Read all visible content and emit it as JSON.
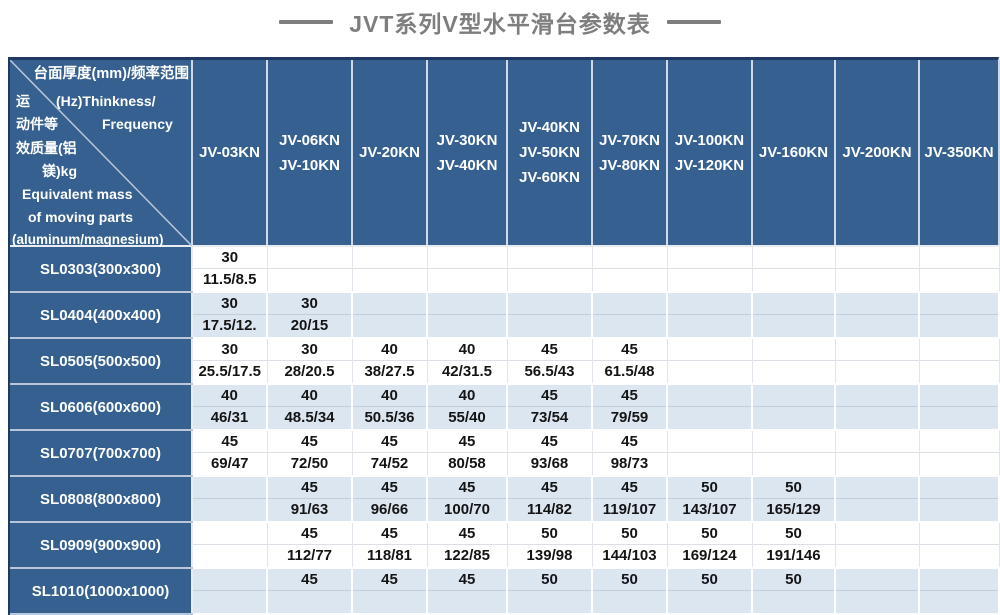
{
  "title": {
    "text": "JVT系列V型水平滑台参数表"
  },
  "colors": {
    "header_blue": "#35608F",
    "outer_border": "#1F3864",
    "stripe_blue": "#DCE6F1",
    "title_gray": "#7E7E7E"
  },
  "table": {
    "corner_lines": [
      "台面厚度(mm)/频率范围",
      "运",
      "(Hz)Thinkness/",
      "动件等",
      "Frequency",
      "效质量(铝",
      "镁)kg",
      "Equivalent mass",
      "of moving parts",
      "(aluminum/magnesium)"
    ],
    "columns": [
      {
        "lines": [
          "JV-03KN"
        ]
      },
      {
        "lines": [
          "JV-06KN",
          "JV-10KN"
        ]
      },
      {
        "lines": [
          "JV-20KN"
        ]
      },
      {
        "lines": [
          "JV-30KN",
          "JV-40KN"
        ]
      },
      {
        "lines": [
          "JV-40KN",
          "JV-50KN",
          "JV-60KN"
        ]
      },
      {
        "lines": [
          "JV-70KN",
          "JV-80KN"
        ]
      },
      {
        "lines": [
          "JV-100KN",
          "JV-120KN"
        ]
      },
      {
        "lines": [
          "JV-160KN"
        ]
      },
      {
        "lines": [
          "JV-200KN"
        ]
      },
      {
        "lines": [
          "JV-350KN"
        ]
      }
    ],
    "rows": [
      {
        "label": "SL0303(300x300)",
        "cells": [
          [
            "30",
            "11.5/8.5"
          ],
          [
            "",
            ""
          ],
          [
            "",
            ""
          ],
          [
            "",
            ""
          ],
          [
            "",
            ""
          ],
          [
            "",
            ""
          ],
          [
            "",
            ""
          ],
          [
            "",
            ""
          ],
          [
            "",
            ""
          ],
          [
            "",
            ""
          ]
        ]
      },
      {
        "label": "SL0404(400x400)",
        "cells": [
          [
            "30",
            "17.5/12."
          ],
          [
            "30",
            "20/15"
          ],
          [
            "",
            ""
          ],
          [
            "",
            ""
          ],
          [
            "",
            ""
          ],
          [
            "",
            ""
          ],
          [
            "",
            ""
          ],
          [
            "",
            ""
          ],
          [
            "",
            ""
          ],
          [
            "",
            ""
          ]
        ]
      },
      {
        "label": "SL0505(500x500)",
        "cells": [
          [
            "30",
            "25.5/17.5"
          ],
          [
            "30",
            "28/20.5"
          ],
          [
            "40",
            "38/27.5"
          ],
          [
            "40",
            "42/31.5"
          ],
          [
            "45",
            "56.5/43"
          ],
          [
            "45",
            "61.5/48"
          ],
          [
            "",
            ""
          ],
          [
            "",
            ""
          ],
          [
            "",
            ""
          ],
          [
            "",
            ""
          ]
        ]
      },
      {
        "label": "SL0606(600x600)",
        "cells": [
          [
            "40",
            "46/31"
          ],
          [
            "40",
            "48.5/34"
          ],
          [
            "40",
            "50.5/36"
          ],
          [
            "40",
            "55/40"
          ],
          [
            "45",
            "73/54"
          ],
          [
            "45",
            "79/59"
          ],
          [
            "",
            ""
          ],
          [
            "",
            ""
          ],
          [
            "",
            ""
          ],
          [
            "",
            ""
          ]
        ]
      },
      {
        "label": "SL0707(700x700)",
        "cells": [
          [
            "45",
            "69/47"
          ],
          [
            "45",
            "72/50"
          ],
          [
            "45",
            "74/52"
          ],
          [
            "45",
            "80/58"
          ],
          [
            "45",
            "93/68"
          ],
          [
            "45",
            "98/73"
          ],
          [
            "",
            ""
          ],
          [
            "",
            ""
          ],
          [
            "",
            ""
          ],
          [
            "",
            ""
          ]
        ]
      },
      {
        "label": "SL0808(800x800)",
        "cells": [
          [
            "",
            ""
          ],
          [
            "45",
            "91/63"
          ],
          [
            "45",
            "96/66"
          ],
          [
            "45",
            "100/70"
          ],
          [
            "45",
            "114/82"
          ],
          [
            "45",
            "119/107"
          ],
          [
            "50",
            "143/107"
          ],
          [
            "50",
            "165/129"
          ],
          [
            "",
            ""
          ],
          [
            "",
            ""
          ]
        ]
      },
      {
        "label": "SL0909(900x900)",
        "cells": [
          [
            "",
            ""
          ],
          [
            "45",
            "112/77"
          ],
          [
            "45",
            "118/81"
          ],
          [
            "45",
            "122/85"
          ],
          [
            "50",
            "139/98"
          ],
          [
            "50",
            "144/103"
          ],
          [
            "50",
            "169/124"
          ],
          [
            "50",
            "191/146"
          ],
          [
            "",
            ""
          ],
          [
            "",
            ""
          ]
        ]
      },
      {
        "label": "SL1010(1000x1000)",
        "cells": [
          [
            "",
            ""
          ],
          [
            "45",
            ""
          ],
          [
            "45",
            ""
          ],
          [
            "45",
            ""
          ],
          [
            "50",
            ""
          ],
          [
            "50",
            ""
          ],
          [
            "50",
            ""
          ],
          [
            "50",
            ""
          ],
          [
            "",
            ""
          ],
          [
            "",
            ""
          ]
        ]
      }
    ]
  }
}
